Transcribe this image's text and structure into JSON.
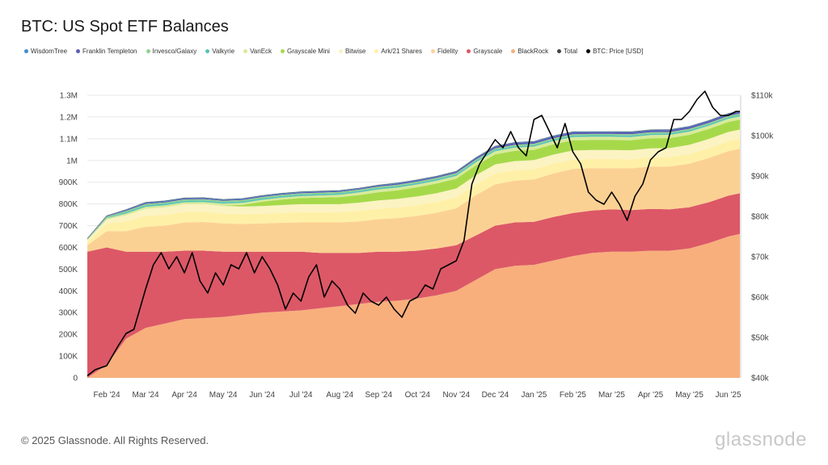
{
  "colors": {
    "WisdomTree": "#3d8fd1",
    "Franklin Templeton": "#5c5cb8",
    "Invesco/Galaxy": "#8fd18f",
    "Valkyrie": "#57c4b6",
    "VanEck": "#d7ea9a",
    "Grayscale Mini": "#a6d94a",
    "Bitwise": "#fbf3c2",
    "Ark/21 Shares": "#fff0a8",
    "Fidelity": "#fbd193",
    "Grayscale": "#dc5867",
    "BlackRock": "#f8af7c",
    "Total": "#444444",
    "BTC: Price [USD]": "#000000",
    "grid": "#e8e8e8",
    "axis_text": "#444444",
    "watermark": "#efe4de"
  },
  "chart_data": {
    "type": "area",
    "title": "BTC: US Spot ETF Balances",
    "stacked": true,
    "legend_position": "top-left",
    "legend": [
      "WisdomTree",
      "Franklin Templeton",
      "Invesco/Galaxy",
      "Valkyrie",
      "VanEck",
      "Grayscale Mini",
      "Bitwise",
      "Ark/21 Shares",
      "Fidelity",
      "Grayscale",
      "BlackRock",
      "Total",
      "BTC: Price [USD]"
    ],
    "x_tick_labels": [
      "Feb '24",
      "Mar '24",
      "Apr '24",
      "May '24",
      "Jun '24",
      "Jul '24",
      "Aug '24",
      "Sep '24",
      "Oct '24",
      "Nov '24",
      "Dec '24",
      "Jan '25",
      "Feb '25",
      "Mar '25",
      "Apr '25",
      "May '25",
      "Jun '25"
    ],
    "y_left_tick_labels": [
      "0",
      "100K",
      "200K",
      "300K",
      "400K",
      "500K",
      "600K",
      "700K",
      "800K",
      "900K",
      "1M",
      "1.1M",
      "1.2M",
      "1.3M"
    ],
    "y_right_tick_labels": [
      "$40k",
      "$50k",
      "$60k",
      "$70k",
      "$80k",
      "$90k",
      "$100k",
      "$110k"
    ],
    "y_left_range": [
      0,
      1300000
    ],
    "y_right_range": [
      40000,
      110000
    ],
    "x_months_range": [
      0.5,
      17.3
    ],
    "watermark": "glassnode",
    "x_months": [
      0.5,
      1.0,
      1.5,
      2.0,
      2.5,
      3.0,
      3.5,
      4.0,
      4.5,
      5.0,
      5.5,
      6.0,
      6.5,
      7.0,
      7.5,
      8.0,
      8.5,
      9.0,
      9.5,
      10.0,
      10.5,
      11.0,
      11.5,
      12.0,
      12.5,
      13.0,
      13.5,
      14.0,
      14.5,
      15.0,
      15.5,
      16.0,
      16.5,
      17.0,
      17.3
    ],
    "series": [
      {
        "name": "BlackRock",
        "values": [
          0,
          60000,
          180000,
          230000,
          250000,
          270000,
          275000,
          280000,
          290000,
          300000,
          305000,
          310000,
          320000,
          330000,
          340000,
          350000,
          355000,
          365000,
          380000,
          400000,
          450000,
          500000,
          515000,
          520000,
          540000,
          560000,
          575000,
          580000,
          580000,
          585000,
          585000,
          595000,
          620000,
          650000,
          662000
        ]
      },
      {
        "name": "Grayscale",
        "values": [
          580000,
          540000,
          400000,
          350000,
          330000,
          315000,
          310000,
          300000,
          290000,
          280000,
          275000,
          270000,
          255000,
          245000,
          235000,
          230000,
          225000,
          220000,
          215000,
          210000,
          205000,
          200000,
          200000,
          198000,
          200000,
          198000,
          195000,
          195000,
          192000,
          192000,
          190000,
          190000,
          188000,
          188000,
          187000
        ]
      },
      {
        "name": "Fidelity",
        "values": [
          30000,
          75000,
          95000,
          115000,
          120000,
          130000,
          132000,
          130000,
          128000,
          130000,
          133000,
          135000,
          140000,
          140000,
          145000,
          150000,
          155000,
          160000,
          165000,
          170000,
          185000,
          190000,
          192000,
          195000,
          200000,
          203000,
          195000,
          190000,
          192000,
          195000,
          197000,
          200000,
          203000,
          205000,
          205000
        ]
      },
      {
        "name": "Ark/21 Shares",
        "values": [
          15000,
          35000,
          45000,
          50000,
          50000,
          48000,
          47000,
          46000,
          45000,
          45000,
          46000,
          47000,
          47000,
          47000,
          48000,
          48000,
          49000,
          50000,
          50000,
          50000,
          50000,
          50000,
          48000,
          47000,
          45000,
          43000,
          42000,
          42000,
          42000,
          43000,
          44000,
          45000,
          46000,
          46000,
          46000
        ]
      },
      {
        "name": "Bitwise",
        "values": [
          7000,
          18000,
          28000,
          33000,
          35000,
          36000,
          36000,
          35000,
          35000,
          35000,
          36000,
          37000,
          37000,
          37000,
          38000,
          38000,
          39000,
          40000,
          40000,
          41000,
          42000,
          42000,
          42000,
          42000,
          42000,
          42000,
          41000,
          41000,
          41000,
          41000,
          41000,
          42000,
          42000,
          42000,
          42000
        ]
      },
      {
        "name": "Grayscale Mini",
        "values": [
          0,
          0,
          0,
          0,
          0,
          0,
          0,
          1000,
          8000,
          20000,
          25000,
          28000,
          30000,
          32000,
          35000,
          38000,
          40000,
          42000,
          44000,
          45000,
          45000,
          46000,
          47000,
          47000,
          47000,
          47000,
          46000,
          46000,
          46000,
          46000,
          46000,
          46000,
          46000,
          46000,
          46000
        ]
      },
      {
        "name": "VanEck",
        "values": [
          3000,
          6000,
          8000,
          9000,
          9000,
          9000,
          9000,
          9000,
          9000,
          9000,
          9000,
          9000,
          10000,
          11000,
          12000,
          13000,
          13000,
          13000,
          13000,
          13000,
          14000,
          15000,
          15000,
          15000,
          15000,
          15000,
          15000,
          15000,
          15000,
          15000,
          15000,
          15000,
          15000,
          15000,
          15000
        ]
      },
      {
        "name": "Valkyrie",
        "values": [
          1000,
          3000,
          6000,
          7000,
          7000,
          7000,
          7000,
          7000,
          7000,
          7000,
          7000,
          7000,
          7000,
          7000,
          7000,
          7000,
          7000,
          7000,
          7000,
          7000,
          7000,
          7000,
          7000,
          7000,
          7000,
          7000,
          7000,
          7000,
          7000,
          7000,
          7000,
          7000,
          7000,
          7000,
          7000
        ]
      },
      {
        "name": "Invesco/Galaxy",
        "values": [
          3000,
          5000,
          6000,
          6000,
          6000,
          6000,
          6000,
          6000,
          6000,
          6000,
          6000,
          6000,
          6000,
          6000,
          6000,
          6000,
          6000,
          6000,
          6000,
          6000,
          6000,
          6000,
          6000,
          6000,
          6000,
          6000,
          6000,
          6000,
          6000,
          6000,
          6000,
          6000,
          6000,
          6000,
          6000
        ]
      },
      {
        "name": "Franklin Templeton",
        "values": [
          1000,
          2000,
          3000,
          4000,
          4000,
          4000,
          4000,
          4000,
          4000,
          4000,
          4000,
          4000,
          4000,
          4000,
          4000,
          4000,
          5000,
          5000,
          5000,
          5000,
          6000,
          7000,
          8000,
          8000,
          8000,
          8000,
          8000,
          8000,
          8000,
          8000,
          8000,
          8000,
          8000,
          8000,
          8000
        ]
      },
      {
        "name": "WisdomTree",
        "values": [
          1000,
          2000,
          3000,
          3000,
          3000,
          3000,
          3000,
          3000,
          3000,
          3000,
          3000,
          3000,
          3000,
          3000,
          3000,
          3000,
          3000,
          3000,
          3000,
          3000,
          3000,
          3000,
          3000,
          3000,
          3000,
          3000,
          3000,
          3000,
          3000,
          3000,
          3000,
          3000,
          3000,
          3000,
          3000
        ]
      }
    ],
    "price_series": {
      "name": "BTC: Price [USD]",
      "axis": "right",
      "x_months": [
        0.5,
        0.7,
        1.0,
        1.3,
        1.5,
        1.7,
        2.0,
        2.2,
        2.4,
        2.6,
        2.8,
        3.0,
        3.2,
        3.4,
        3.6,
        3.8,
        4.0,
        4.2,
        4.4,
        4.6,
        4.8,
        5.0,
        5.2,
        5.4,
        5.6,
        5.8,
        6.0,
        6.2,
        6.4,
        6.6,
        6.8,
        7.0,
        7.2,
        7.4,
        7.6,
        7.8,
        8.0,
        8.2,
        8.4,
        8.6,
        8.8,
        9.0,
        9.2,
        9.4,
        9.6,
        9.8,
        10.0,
        10.2,
        10.4,
        10.6,
        10.8,
        11.0,
        11.2,
        11.4,
        11.6,
        11.8,
        12.0,
        12.2,
        12.4,
        12.6,
        12.8,
        13.0,
        13.2,
        13.4,
        13.6,
        13.8,
        14.0,
        14.2,
        14.4,
        14.6,
        14.8,
        15.0,
        15.2,
        15.4,
        15.6,
        15.8,
        16.0,
        16.2,
        16.4,
        16.6,
        16.8,
        17.0,
        17.2,
        17.3
      ],
      "values": [
        40500,
        42000,
        43000,
        48000,
        51000,
        52000,
        62000,
        68000,
        71000,
        67000,
        70000,
        66000,
        71000,
        64000,
        61000,
        66000,
        63000,
        68000,
        67000,
        71000,
        66000,
        70000,
        67000,
        63000,
        57000,
        61000,
        59000,
        65000,
        68000,
        60000,
        64000,
        62000,
        58000,
        56000,
        61000,
        59000,
        58000,
        60000,
        57000,
        55000,
        59000,
        60000,
        63000,
        62000,
        67000,
        68000,
        69000,
        74000,
        88000,
        93000,
        96000,
        99000,
        97000,
        101000,
        97000,
        95000,
        104000,
        105000,
        101000,
        97000,
        103000,
        96000,
        93000,
        86000,
        84000,
        83000,
        86000,
        83000,
        79000,
        85000,
        88000,
        94000,
        96000,
        97000,
        104000,
        104000,
        106000,
        109000,
        111000,
        107000,
        105000,
        105000,
        106000,
        106000
      ]
    }
  },
  "footer": {
    "copyright": "© 2025 Glassnode. All Rights Reserved.",
    "brand": "glassnode"
  }
}
